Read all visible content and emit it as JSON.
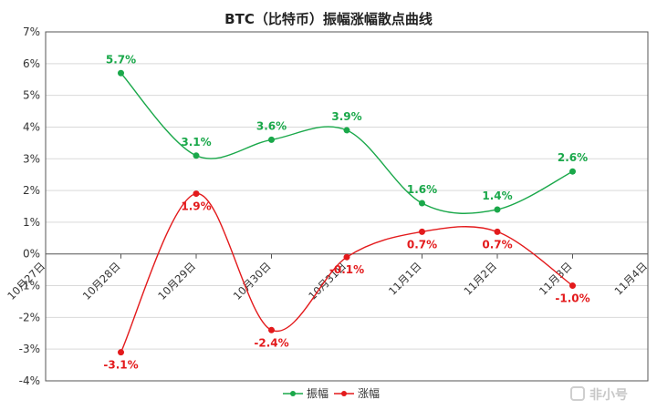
{
  "chart_data": {
    "type": "line",
    "title": "BTC（比特币）振幅涨幅散点曲线",
    "categories": [
      "10月27日",
      "10月28日",
      "10月29日",
      "10月30日",
      "10月31日",
      "11月1日",
      "11月2日",
      "11月3日",
      "11月4日"
    ],
    "y_ticks": [
      "7%",
      "6%",
      "5%",
      "4%",
      "3%",
      "2%",
      "1%",
      "0%",
      "-1%",
      "-2%",
      "-3%",
      "-4%"
    ],
    "ylim": [
      -4,
      7
    ],
    "grid": "horizontal",
    "legend_position": "bottom",
    "series": [
      {
        "name": "振幅",
        "color": "#1aa84a",
        "x": [
          "10月28日",
          "10月29日",
          "10月30日",
          "10月31日",
          "11月1日",
          "11月2日",
          "11月3日"
        ],
        "values": [
          5.7,
          3.1,
          3.6,
          3.9,
          1.6,
          1.4,
          2.6
        ],
        "labels": [
          "5.7%",
          "3.1%",
          "3.6%",
          "3.9%",
          "1.6%",
          "1.4%",
          "2.6%"
        ]
      },
      {
        "name": "涨幅",
        "color": "#e31a1c",
        "x": [
          "10月28日",
          "10月29日",
          "10月30日",
          "10月31日",
          "11月1日",
          "11月2日",
          "11月3日"
        ],
        "values": [
          -3.1,
          1.9,
          -2.4,
          -0.1,
          0.7,
          0.7,
          -1.0
        ],
        "labels": [
          "-3.1%",
          "1.9%",
          "-2.4%",
          "-0.1%",
          "0.7%",
          "0.7%",
          "-1.0%"
        ]
      }
    ]
  },
  "watermark": "非小号"
}
